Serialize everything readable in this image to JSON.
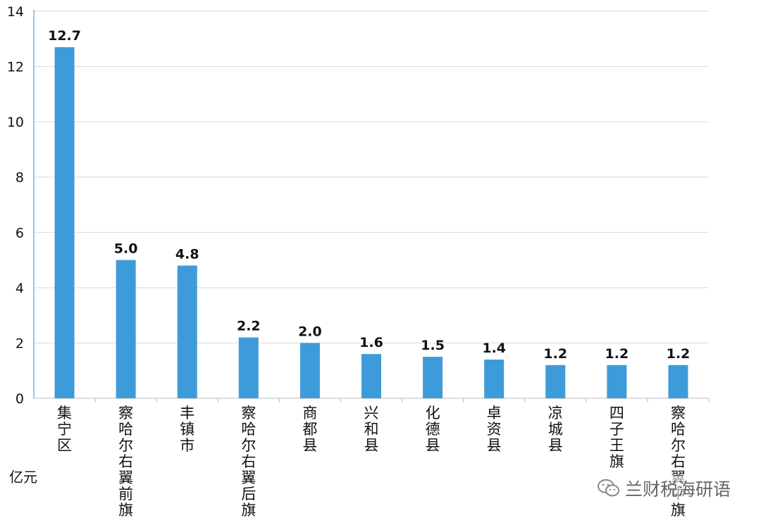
{
  "chart_data": {
    "type": "bar",
    "categories": [
      "集宁区",
      "察哈尔右翼前旗",
      "丰镇市",
      "察哈尔右翼后旗",
      "商都县",
      "兴和县",
      "化德县",
      "卓资县",
      "凉城县",
      "四子王旗",
      "察哈尔右翼中旗"
    ],
    "values": [
      12.7,
      5.0,
      4.8,
      2.2,
      2.0,
      1.6,
      1.5,
      1.4,
      1.2,
      1.2,
      1.2
    ],
    "value_labels": [
      "12.7",
      "5.0",
      "4.8",
      "2.2",
      "2.0",
      "1.6",
      "1.5",
      "1.4",
      "1.2",
      "1.2",
      "1.2"
    ],
    "y_ticks": [
      0,
      2,
      4,
      6,
      8,
      10,
      12,
      14
    ],
    "ylim": [
      0,
      14
    ],
    "ylabel": "亿元",
    "bar_color": "#3e9bd9",
    "grid": true
  },
  "watermark": {
    "icon": "wechat-icon",
    "text": "兰财税海研语"
  }
}
